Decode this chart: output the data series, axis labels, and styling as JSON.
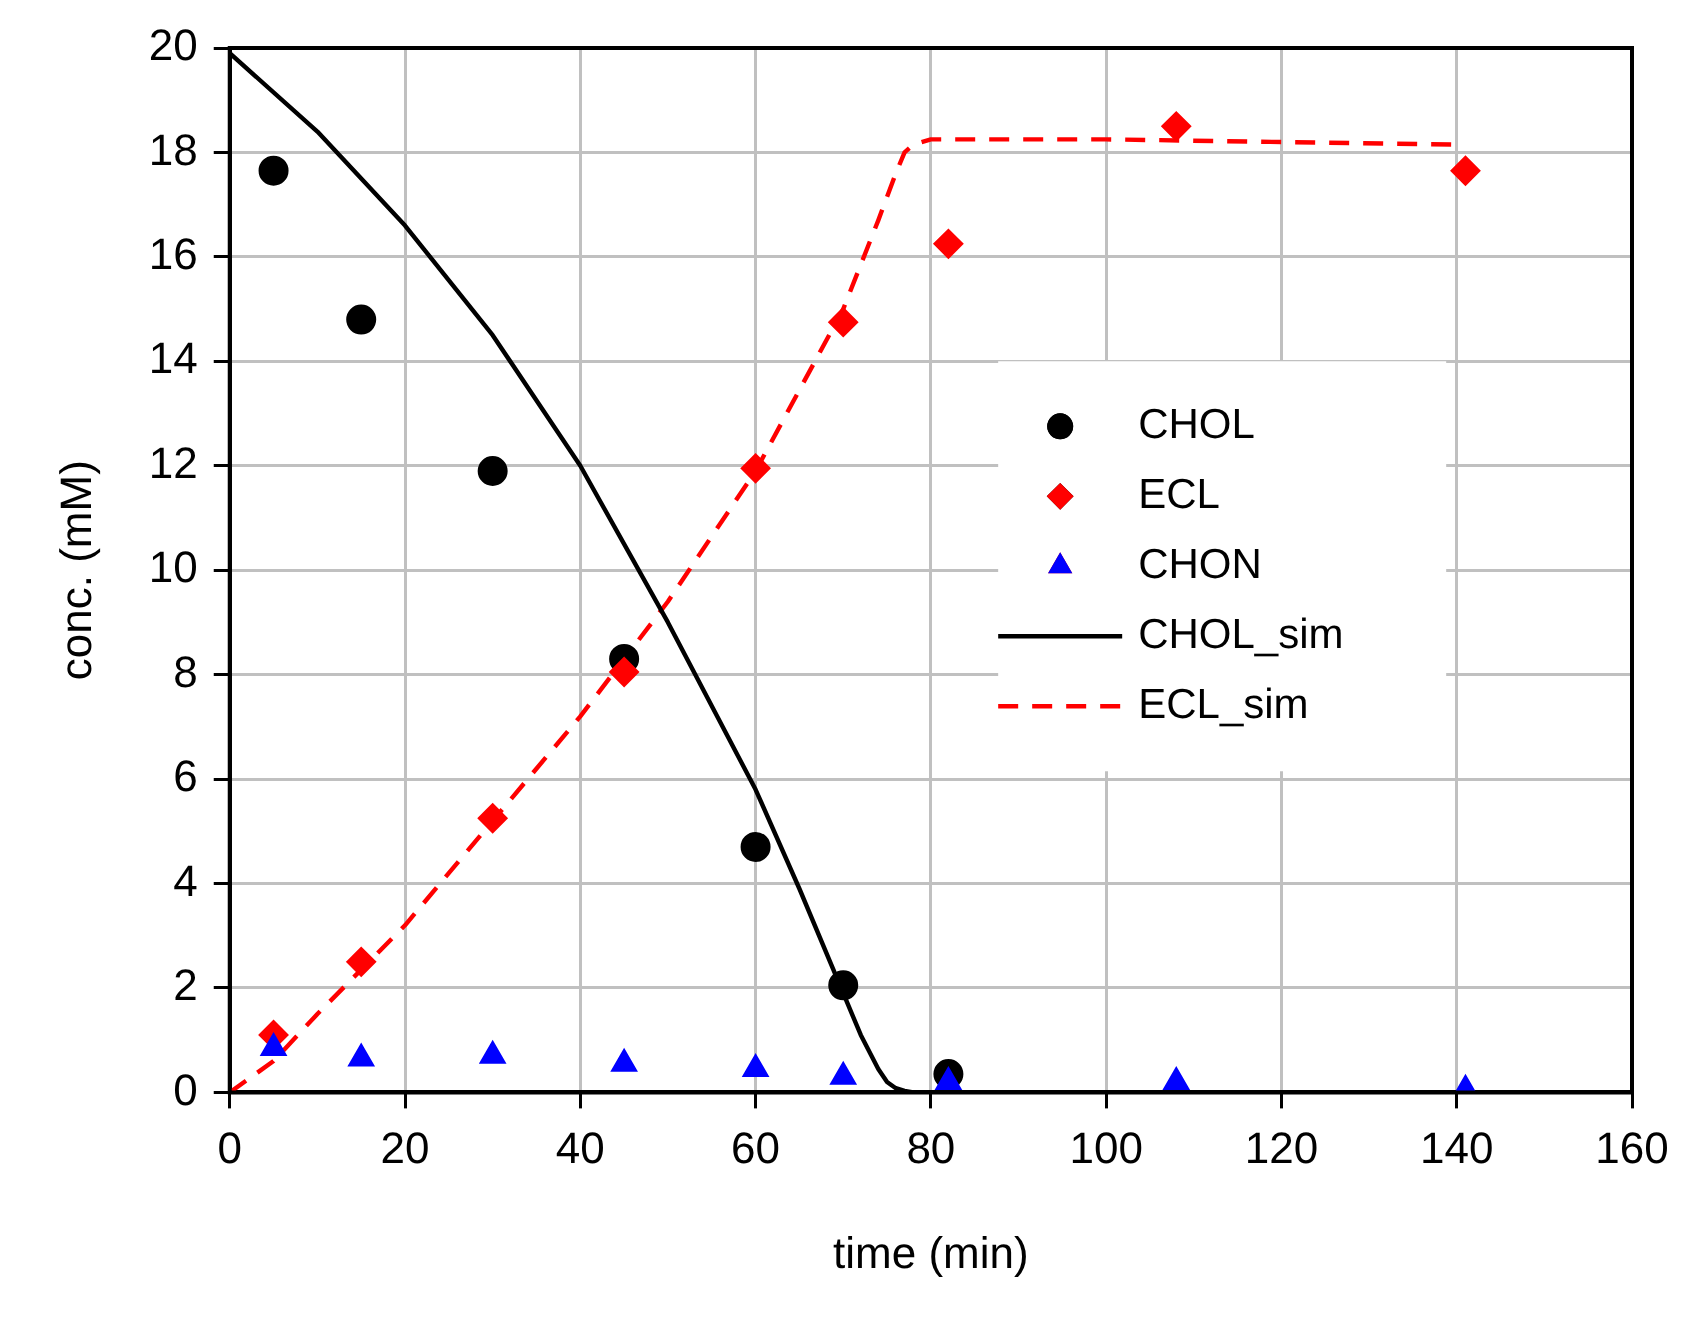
{
  "chart_data": {
    "type": "scatter",
    "xlabel": "time (min)",
    "ylabel": "conc. (mM)",
    "xlim": [
      0,
      160
    ],
    "xticks": [
      0,
      20,
      40,
      60,
      80,
      100,
      120,
      140,
      160
    ],
    "ylim": [
      0,
      20
    ],
    "yticks": [
      0,
      2,
      4,
      6,
      8,
      10,
      12,
      14,
      16,
      18,
      20
    ],
    "grid": true,
    "legend": "right",
    "series": [
      {
        "name": "CHOL",
        "marker": "circle",
        "color": "#000000",
        "x": [
          5,
          15,
          30,
          45,
          60,
          70,
          82
        ],
        "values": [
          17.65,
          14.8,
          11.9,
          8.3,
          4.7,
          2.05,
          0.35
        ]
      },
      {
        "name": "ECL",
        "marker": "diamond",
        "color": "#ff0000",
        "x": [
          5,
          15,
          30,
          45,
          60,
          70,
          82,
          108,
          141
        ],
        "values": [
          1.1,
          2.5,
          5.25,
          8.05,
          11.95,
          14.75,
          16.25,
          18.5,
          17.65
        ]
      },
      {
        "name": "CHON",
        "marker": "triangle",
        "color": "#0000ff",
        "x": [
          5,
          15,
          30,
          45,
          60,
          70,
          82,
          108,
          141
        ],
        "values": [
          0.85,
          0.65,
          0.7,
          0.55,
          0.45,
          0.3,
          0.2,
          0.2,
          0.05
        ]
      },
      {
        "name": "CHOL_sim",
        "type": "line",
        "marker": "none",
        "line_style": "solid",
        "color": "#000000",
        "x": [
          0,
          10,
          20,
          30,
          40,
          50,
          60,
          65,
          70,
          72,
          74,
          75,
          76,
          77,
          78,
          80
        ],
        "values": [
          19.9,
          18.4,
          16.6,
          14.5,
          12.0,
          9.0,
          5.8,
          3.9,
          1.9,
          1.1,
          0.45,
          0.2,
          0.08,
          0.03,
          0,
          0
        ]
      },
      {
        "name": "ECL_sim",
        "type": "line",
        "marker": "none",
        "line_style": "dashed",
        "color": "#ff0000",
        "x": [
          0,
          5,
          10,
          20,
          30,
          40,
          50,
          60,
          70,
          74,
          76,
          77,
          78,
          80,
          100,
          120,
          140
        ],
        "values": [
          0,
          0.6,
          1.5,
          3.2,
          5.2,
          7.2,
          9.4,
          11.9,
          15.0,
          16.7,
          17.6,
          18.0,
          18.15,
          18.25,
          18.25,
          18.2,
          18.15
        ]
      }
    ]
  }
}
